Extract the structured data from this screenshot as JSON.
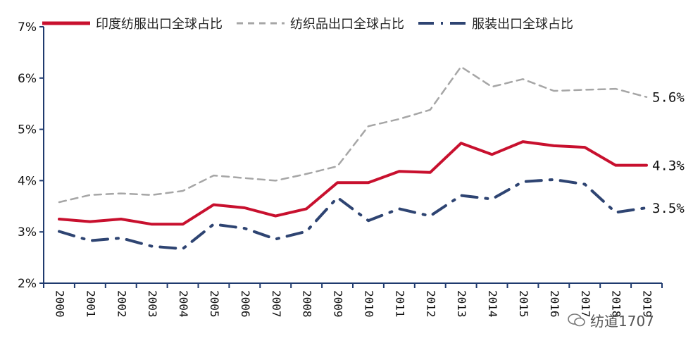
{
  "chart_data": {
    "type": "line",
    "title": "",
    "xlabel": "",
    "ylabel": "",
    "ylim": [
      2,
      7
    ],
    "yticks": [
      2,
      3,
      4,
      5,
      6,
      7
    ],
    "ytick_labels": [
      "2%",
      "3%",
      "4%",
      "5%",
      "6%",
      "7%"
    ],
    "categories": [
      "2000",
      "2001",
      "2002",
      "2003",
      "2004",
      "2005",
      "2006",
      "2007",
      "2008",
      "2009",
      "2010",
      "2011",
      "2012",
      "2013",
      "2014",
      "2015",
      "2016",
      "2017",
      "2018",
      "2019"
    ],
    "series": [
      {
        "name": "印度纺服出口全球占比",
        "color": "#c8102e",
        "style": "solid",
        "values": [
          3.25,
          3.2,
          3.25,
          3.15,
          3.15,
          3.53,
          3.47,
          3.31,
          3.45,
          3.96,
          3.96,
          4.18,
          4.16,
          4.73,
          4.51,
          4.76,
          4.68,
          4.65,
          4.3,
          4.3
        ]
      },
      {
        "name": "纺织品出口全球占比",
        "color": "#a6a6a6",
        "style": "dashed",
        "values": [
          3.58,
          3.72,
          3.75,
          3.72,
          3.8,
          4.1,
          4.05,
          4.0,
          4.13,
          4.28,
          5.06,
          5.2,
          5.38,
          6.22,
          5.83,
          5.98,
          5.75,
          5.77,
          5.79,
          5.63
        ]
      },
      {
        "name": "服装出口全球占比",
        "color": "#2e4472",
        "style": "dashdot",
        "values": [
          3.01,
          2.83,
          2.88,
          2.72,
          2.67,
          3.15,
          3.07,
          2.86,
          3.01,
          3.67,
          3.22,
          3.45,
          3.31,
          3.71,
          3.64,
          3.98,
          4.02,
          3.93,
          3.38,
          3.47
        ]
      }
    ],
    "end_labels": [
      "4.3%",
      "5.6%",
      "3.5%"
    ],
    "legend_position": "top"
  },
  "watermark": {
    "text": "纺道1707"
  }
}
